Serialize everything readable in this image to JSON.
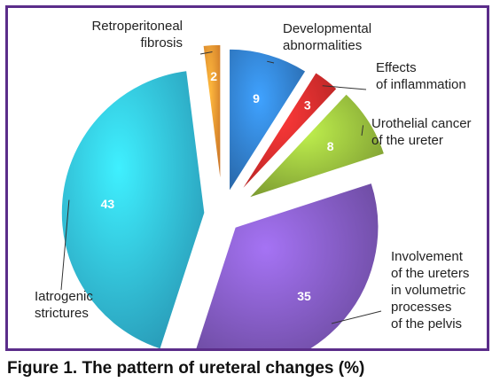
{
  "caption": "Figure 1. The pattern of ureteral changes (%)",
  "chart_data": {
    "type": "pie",
    "title": "",
    "exploded": true,
    "slices": [
      {
        "label": "Developmental abnormalities",
        "label_lines": [
          "Developmental",
          "abnormalities"
        ],
        "value": 9,
        "color": "#2f78c4"
      },
      {
        "label": "Effects of inflammation",
        "label_lines": [
          "Effects",
          "of inflammation"
        ],
        "value": 3,
        "color": "#d42a2a"
      },
      {
        "label": "Urothelial cancer of the ureter",
        "label_lines": [
          "Urothelial cancer",
          "of the ureter"
        ],
        "value": 8,
        "color": "#8fb33a"
      },
      {
        "label": "Involvement of the ureters in volumetric processes of the pelvis",
        "label_lines": [
          "Involvement",
          "of the ureters",
          "in volumetric",
          "processes",
          "of the pelvis"
        ],
        "value": 35,
        "color": "#7a55b5"
      },
      {
        "label": "Iatrogenic strictures",
        "label_lines": [
          "Iatrogenic",
          "strictures"
        ],
        "value": 43,
        "color": "#2fb2d4"
      },
      {
        "label": "Retroperitoneal fibrosis",
        "label_lines": [
          "Retroperitoneal",
          "fibrosis"
        ],
        "value": 2,
        "color": "#ef8a2e"
      }
    ]
  }
}
